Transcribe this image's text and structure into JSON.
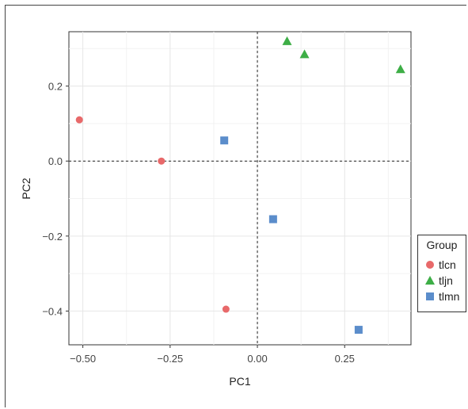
{
  "chart_data": {
    "type": "scatter",
    "xlabel": "PC1",
    "ylabel": "PC2",
    "xlim": [
      -0.54,
      0.44
    ],
    "ylim": [
      -0.49,
      0.345
    ],
    "x_ticks": [
      -0.5,
      -0.25,
      0.0,
      0.25
    ],
    "x_tick_labels": [
      "−0.50",
      "−0.25",
      "0.00",
      "0.25"
    ],
    "y_ticks": [
      0.2,
      0.0,
      -0.2,
      -0.4
    ],
    "y_tick_labels": [
      "0.2",
      "0.0",
      "−0.2",
      "−0.4"
    ],
    "grid": true,
    "reference_lines": {
      "x": 0,
      "y": 0,
      "style": "dashed"
    },
    "legend_position": "right",
    "legend_title": "Group",
    "series": [
      {
        "name": "tlcn",
        "marker": "circle",
        "color": "#E8696A",
        "points": [
          [
            -0.51,
            0.11
          ],
          [
            -0.275,
            0.0
          ],
          [
            -0.09,
            -0.395
          ]
        ]
      },
      {
        "name": "tljn",
        "marker": "triangle",
        "color": "#3DAE46",
        "points": [
          [
            0.085,
            0.32
          ],
          [
            0.135,
            0.285
          ],
          [
            0.41,
            0.245
          ]
        ]
      },
      {
        "name": "tlmn",
        "marker": "square",
        "color": "#5B8DCB",
        "points": [
          [
            -0.095,
            0.055
          ],
          [
            0.045,
            -0.155
          ],
          [
            0.29,
            -0.45
          ]
        ]
      }
    ]
  }
}
